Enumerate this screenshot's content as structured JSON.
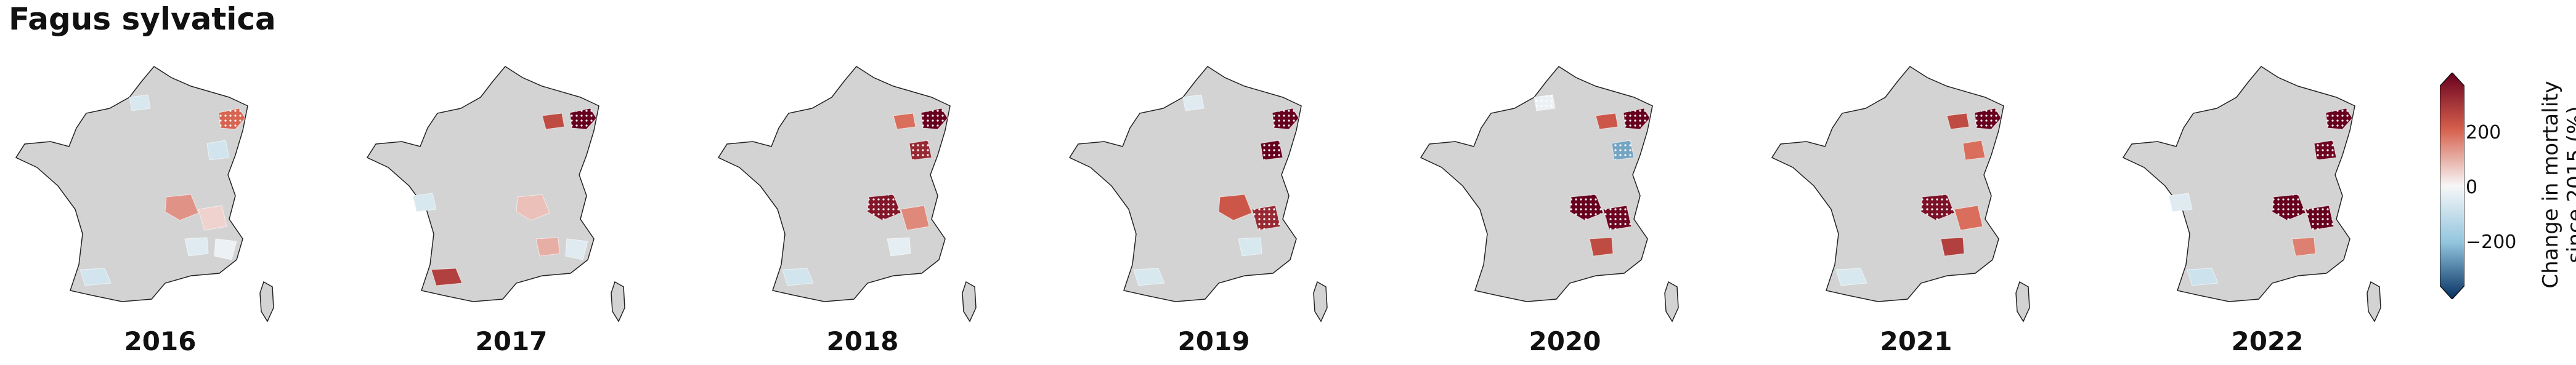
{
  "title": "Fagus sylvatica",
  "years": [
    "2016",
    "2017",
    "2018",
    "2019",
    "2020",
    "2021",
    "2022"
  ],
  "colorbar": {
    "label_line1": "Change in mortality",
    "label_line2": "since 2015 (%)",
    "ticks": [
      "200",
      "0",
      "−200"
    ],
    "colors": {
      "high": "#67001f",
      "mid_high": "#d6604d",
      "neutral": "#f7f7f7",
      "mid_low": "#92c5de",
      "low": "#053061"
    },
    "map_fill": "#d3d3d3"
  },
  "panels": [
    {
      "year": "2016",
      "regions": [
        {
          "id": "NE",
          "value": 160,
          "hatched": true
        },
        {
          "id": "E",
          "value": -60,
          "hatched": false
        },
        {
          "id": "C1",
          "value": 110,
          "hatched": false
        },
        {
          "id": "C2",
          "value": 40,
          "hatched": false
        },
        {
          "id": "SE1",
          "value": -40,
          "hatched": false
        },
        {
          "id": "SE2",
          "value": -20,
          "hatched": false
        },
        {
          "id": "SW",
          "value": -60,
          "hatched": false
        },
        {
          "id": "N",
          "value": -50,
          "hatched": false
        }
      ]
    },
    {
      "year": "2017",
      "regions": [
        {
          "id": "NE",
          "value": 330,
          "hatched": true
        },
        {
          "id": "NE2",
          "value": 200,
          "hatched": false
        },
        {
          "id": "C1",
          "value": 60,
          "hatched": false
        },
        {
          "id": "SE1",
          "value": 80,
          "hatched": false
        },
        {
          "id": "SE2",
          "value": -40,
          "hatched": false
        },
        {
          "id": "SW",
          "value": 220,
          "hatched": false
        },
        {
          "id": "W",
          "value": -50,
          "hatched": false
        }
      ]
    },
    {
      "year": "2018",
      "regions": [
        {
          "id": "NE",
          "value": 330,
          "hatched": true
        },
        {
          "id": "NE2",
          "value": 150,
          "hatched": false
        },
        {
          "id": "E",
          "value": 260,
          "hatched": true
        },
        {
          "id": "C1",
          "value": 290,
          "hatched": true
        },
        {
          "id": "C2",
          "value": 120,
          "hatched": false
        },
        {
          "id": "SE1",
          "value": -30,
          "hatched": false
        },
        {
          "id": "SW",
          "value": -60,
          "hatched": false
        }
      ]
    },
    {
      "year": "2019",
      "regions": [
        {
          "id": "NE",
          "value": 330,
          "hatched": true
        },
        {
          "id": "E",
          "value": 330,
          "hatched": true
        },
        {
          "id": "C1",
          "value": 180,
          "hatched": false
        },
        {
          "id": "C2",
          "value": 260,
          "hatched": true
        },
        {
          "id": "SE1",
          "value": -50,
          "hatched": false
        },
        {
          "id": "SW",
          "value": -50,
          "hatched": false
        },
        {
          "id": "N",
          "value": -40,
          "hatched": false
        }
      ]
    },
    {
      "year": "2020",
      "regions": [
        {
          "id": "NE",
          "value": 330,
          "hatched": true
        },
        {
          "id": "NE2",
          "value": 180,
          "hatched": false
        },
        {
          "id": "E",
          "value": -200,
          "hatched": true
        },
        {
          "id": "C1",
          "value": 330,
          "hatched": true
        },
        {
          "id": "C2",
          "value": 320,
          "hatched": true
        },
        {
          "id": "SE1",
          "value": 200,
          "hatched": false
        },
        {
          "id": "N",
          "value": -20,
          "hatched": true
        }
      ]
    },
    {
      "year": "2021",
      "regions": [
        {
          "id": "NE",
          "value": 330,
          "hatched": true
        },
        {
          "id": "NE2",
          "value": 200,
          "hatched": false
        },
        {
          "id": "E",
          "value": 150,
          "hatched": false
        },
        {
          "id": "C1",
          "value": 300,
          "hatched": true
        },
        {
          "id": "C2",
          "value": 150,
          "hatched": false
        },
        {
          "id": "SE1",
          "value": 220,
          "hatched": false
        },
        {
          "id": "SW",
          "value": -50,
          "hatched": false
        }
      ]
    },
    {
      "year": "2022",
      "regions": [
        {
          "id": "NE",
          "value": 330,
          "hatched": true
        },
        {
          "id": "E",
          "value": 320,
          "hatched": true
        },
        {
          "id": "C1",
          "value": 330,
          "hatched": true
        },
        {
          "id": "C2",
          "value": 330,
          "hatched": true
        },
        {
          "id": "SE1",
          "value": 130,
          "hatched": false
        },
        {
          "id": "SW",
          "value": -70,
          "hatched": false
        },
        {
          "id": "W",
          "value": -40,
          "hatched": false
        }
      ]
    }
  ]
}
